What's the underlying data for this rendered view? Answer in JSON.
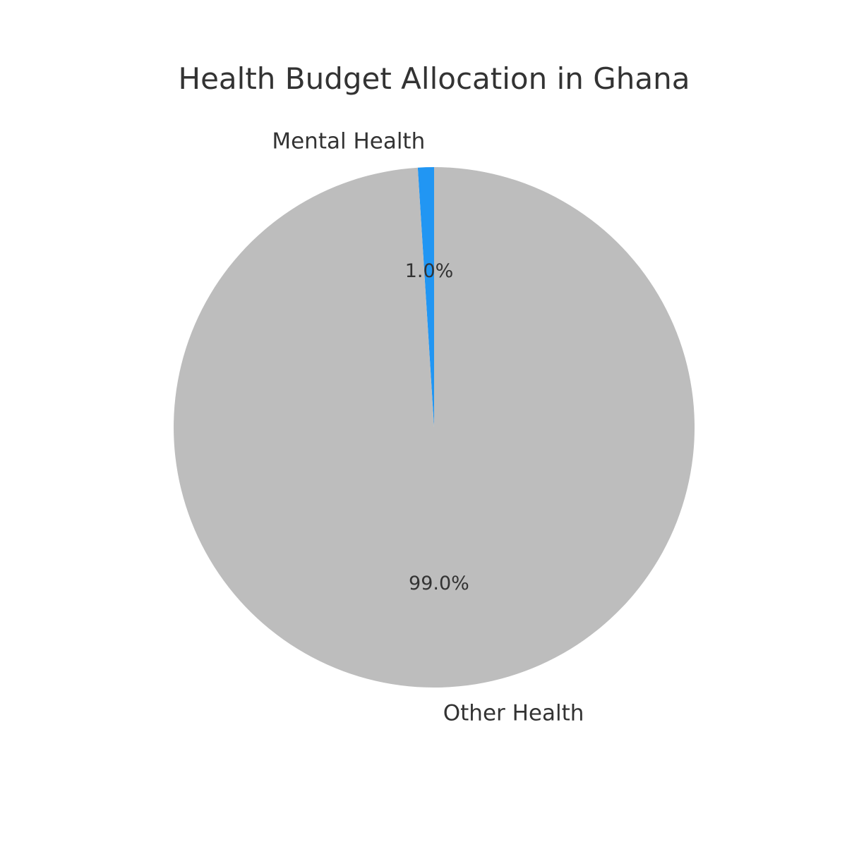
{
  "chart_data": {
    "type": "pie",
    "title": "Health Budget Allocation in Ghana",
    "slices": [
      {
        "label": "Mental Health",
        "value": 1.0,
        "percent_label": "1.0%",
        "color": "#2196f3"
      },
      {
        "label": "Other Health",
        "value": 99.0,
        "percent_label": "99.0%",
        "color": "#bdbdbd"
      }
    ],
    "start_angle_deg": 90,
    "direction": "counterclockwise",
    "legend": "none"
  }
}
